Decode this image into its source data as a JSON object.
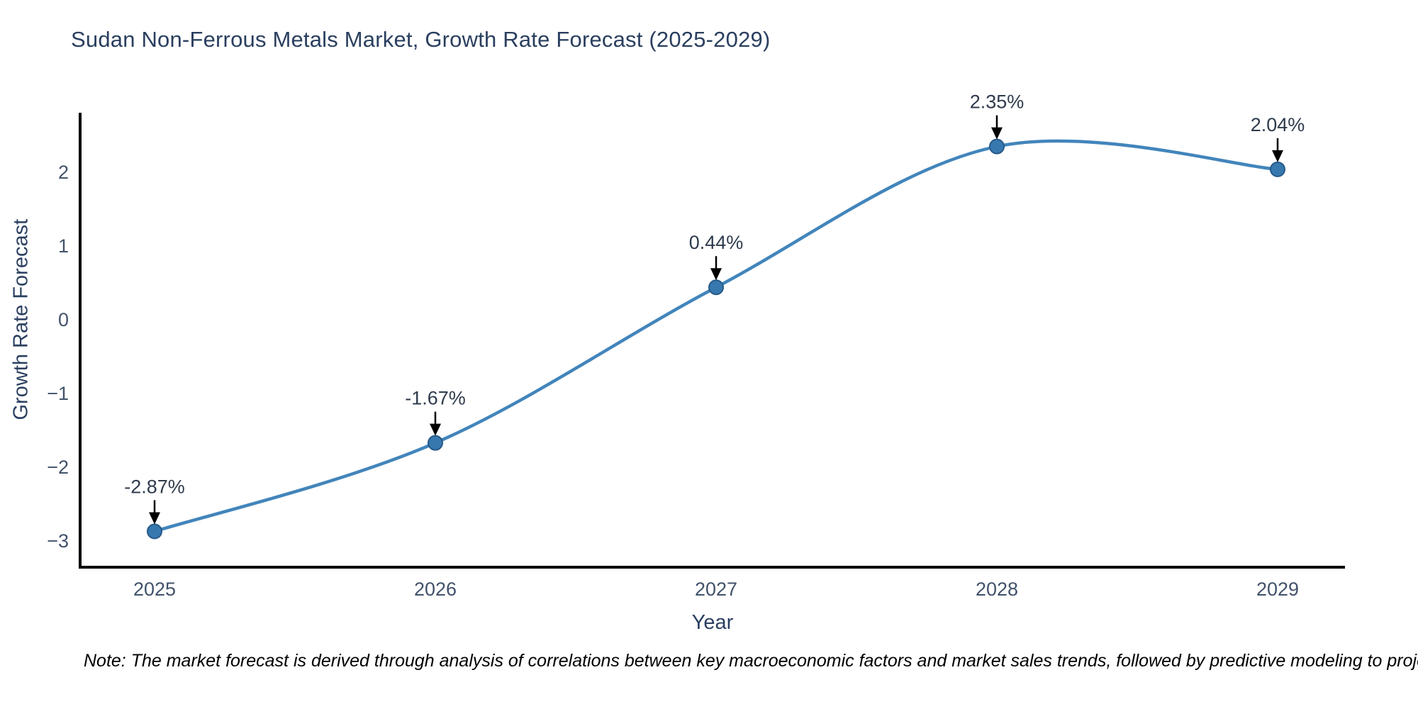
{
  "note": "Note: The market forecast is derived through analysis of correlations between key macroeconomic factors and market sales trends, followed by predictive modeling to project future sales",
  "chart_data": {
    "type": "line",
    "title": "Sudan Non-Ferrous Metals Market, Growth Rate Forecast (2025-2029)",
    "xlabel": "Year",
    "ylabel": "Growth Rate Forecast",
    "x": [
      2025,
      2026,
      2027,
      2028,
      2029
    ],
    "xtick_labels": [
      "2025",
      "2026",
      "2027",
      "2028",
      "2029"
    ],
    "values": [
      -2.87,
      -1.67,
      0.44,
      2.35,
      2.04
    ],
    "point_labels": [
      "-2.87%",
      "-1.67%",
      "0.44%",
      "2.35%",
      "2.04%"
    ],
    "yticks": [
      2,
      1,
      0,
      -1,
      -2,
      -3
    ],
    "ytick_labels": [
      "2",
      "1",
      "0",
      "−1",
      "−2",
      "−3"
    ],
    "ylim": [
      -3.36,
      2.81
    ],
    "line_shape": "spline",
    "grid": false,
    "legend": "none",
    "colors": {
      "line": "#4285bb",
      "marker_fill": "#3778af",
      "marker_stroke": "#265a88",
      "axis_line": "#000000",
      "title_text": "#2a3f5f",
      "tick_text": "#42526b",
      "annotation_text": "#2f3b4c",
      "arrow": "#000000",
      "note_text": "#000000",
      "background": "#ffffff"
    }
  }
}
